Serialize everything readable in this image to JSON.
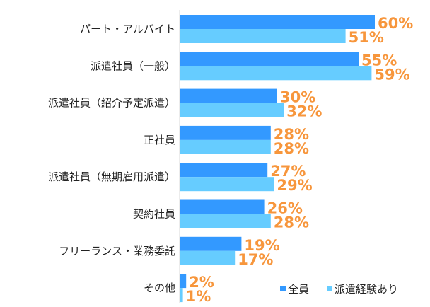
{
  "chart_data": {
    "type": "bar",
    "orientation": "horizontal",
    "categories": [
      "パート・アルバイト",
      "派遣社員（一般）",
      "派遣社員（紹介予定派遣）",
      "正社員",
      "派遣社員（無期雇用派遣）",
      "契約社員",
      "フリーランス・業務委託",
      "その他"
    ],
    "series": [
      {
        "name": "全員",
        "color": "#3399FF",
        "values": [
          60,
          55,
          30,
          28,
          27,
          26,
          19,
          2
        ]
      },
      {
        "name": "派遣経験あり",
        "color": "#66CCFF",
        "values": [
          51,
          59,
          32,
          28,
          29,
          28,
          17,
          1
        ]
      }
    ],
    "value_suffix": "%",
    "label_color": "#F7963C",
    "xlim": [
      0,
      70
    ],
    "grid": false,
    "legend": "bottom-right"
  }
}
